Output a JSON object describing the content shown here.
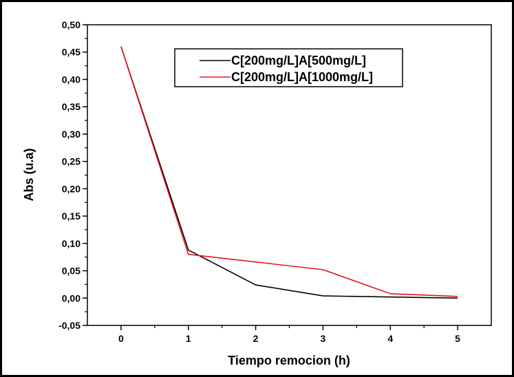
{
  "chart_data": {
    "type": "line",
    "title": "",
    "xlabel": "Tiempo remocion (h)",
    "ylabel": "Abs (u.a)",
    "xlim": [
      -0.5,
      5.5
    ],
    "ylim": [
      -0.05,
      0.5
    ],
    "x_ticks": [
      "0",
      "1",
      "2",
      "3",
      "4",
      "5"
    ],
    "y_ticks": [
      "-0,05",
      "0,00",
      "0,05",
      "0,10",
      "0,15",
      "0,20",
      "0,25",
      "0,30",
      "0,35",
      "0,40",
      "0,45",
      "0,50"
    ],
    "x": [
      0,
      1,
      2,
      3,
      4,
      5
    ],
    "series": [
      {
        "name": "C[200mg/L]A[500mg/L]",
        "color": "#000000",
        "values": [
          0.46,
          0.088,
          0.024,
          0.004,
          0.002,
          0.0
        ]
      },
      {
        "name": "C[200mg/L]A[1000mg/L]",
        "color": "#e8131b",
        "values": [
          0.46,
          0.08,
          0.066,
          0.052,
          0.008,
          0.003
        ]
      }
    ],
    "legend_position": "top-right",
    "grid": false
  }
}
